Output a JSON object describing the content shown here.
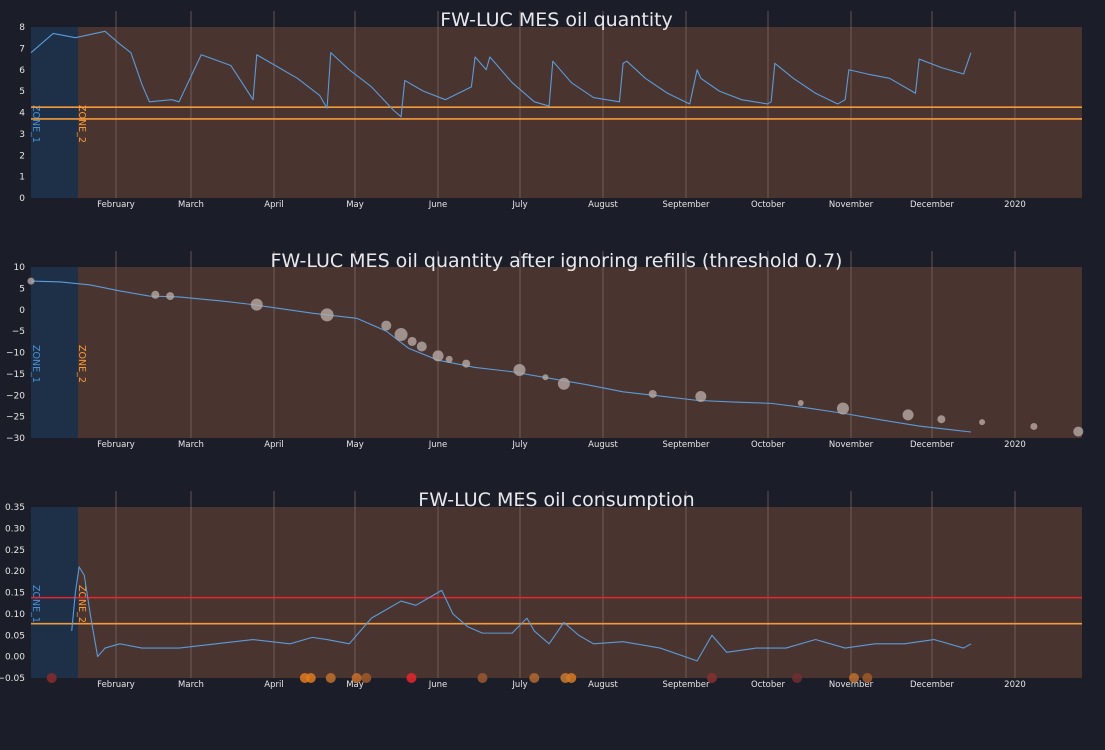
{
  "colors": {
    "background": "#1b1d29",
    "plot_bg": "#4a3430",
    "zone1_bg": "#1e3047",
    "grid": "#8a7470",
    "line": "#5b9bd8",
    "orange": "#f39a3a",
    "red": "#e5262c",
    "marker": "#b5a9a5"
  },
  "months": [
    "February",
    "March",
    "April",
    "May",
    "June",
    "July",
    "August",
    "September",
    "October",
    "November",
    "December",
    "2020"
  ],
  "zones": {
    "zone1": "ZONE_1",
    "zone2": "ZONE_2"
  },
  "chart_data": [
    {
      "type": "line",
      "title": "FW-LUC MES oil quantity",
      "ylim": [
        0,
        8
      ],
      "yticks": [
        "0",
        "1",
        "2",
        "3",
        "4",
        "5",
        "6",
        "7",
        "8"
      ],
      "thresholds": [
        {
          "value": 4.25,
          "color": "orange"
        },
        {
          "value": 3.7,
          "color": "orange"
        }
      ],
      "series": [
        {
          "x": [
            0,
            0.3,
            0.6,
            1.0,
            1.2,
            1.35,
            1.4,
            1.5,
            1.6,
            1.9,
            2.0,
            2.3,
            2.7,
            3.0,
            3.05,
            3.3,
            3.6,
            3.9,
            4.0,
            4.05,
            4.3,
            4.6,
            4.9,
            5.0,
            5.05,
            5.3,
            5.6,
            5.95,
            6.0,
            6.15,
            6.2,
            6.5,
            6.8,
            7.0,
            7.05,
            7.3,
            7.6,
            7.95,
            8.0,
            8.05,
            8.3,
            8.6,
            8.9,
            9.0,
            9.05,
            9.3,
            9.6,
            9.95,
            10.0,
            10.05,
            10.3,
            10.6,
            10.9,
            11.0,
            11.05,
            11.3,
            11.6,
            11.95,
            12.0,
            12.3,
            12.6,
            12.7
          ],
          "values": [
            6.8,
            7.7,
            7.5,
            7.8,
            7.2,
            6.8,
            6.3,
            5.3,
            4.5,
            4.6,
            4.5,
            6.7,
            6.2,
            4.6,
            6.7,
            6.2,
            5.6,
            4.8,
            4.2,
            6.8,
            6.0,
            5.2,
            4.1,
            3.8,
            5.5,
            5.0,
            4.6,
            5.2,
            6.6,
            6.0,
            6.6,
            5.4,
            4.5,
            4.3,
            6.4,
            5.4,
            4.7,
            4.5,
            6.3,
            6.4,
            5.6,
            4.9,
            4.4,
            6.0,
            5.6,
            5.0,
            4.6,
            4.4,
            4.5,
            6.3,
            5.6,
            4.9,
            4.4,
            4.6,
            6.0,
            5.8,
            5.6,
            4.9,
            6.5,
            6.1,
            5.8,
            6.8
          ]
        }
      ]
    },
    {
      "type": "line",
      "title": "FW-LUC MES oil quantity after ignoring refills (threshold 0.7)",
      "ylim": [
        -30,
        10
      ],
      "yticks": [
        "−30",
        "−25",
        "−20",
        "−15",
        "−10",
        "−5",
        "0",
        "5",
        "10"
      ],
      "series": [
        {
          "x": [
            0,
            0.4,
            0.8,
            1.2,
            1.6,
            2.0,
            2.6,
            3.0,
            3.8,
            4.4,
            4.8,
            5.1,
            5.5,
            6.0,
            6.5,
            7.0,
            7.5,
            8.0,
            8.5,
            9.0,
            9.5,
            10.0,
            10.5,
            11.0,
            11.5,
            12.0,
            12.5,
            12.7
          ],
          "values": [
            6.7,
            6.5,
            5.8,
            4.4,
            3.2,
            3.0,
            2.0,
            1.2,
            -0.8,
            -2.0,
            -5.0,
            -9.0,
            -11.8,
            -13.5,
            -14.5,
            -16.0,
            -17.5,
            -19.2,
            -20.2,
            -21.2,
            -21.6,
            -21.9,
            -23.0,
            -24.3,
            -25.8,
            -27.2,
            -28.2,
            -28.6
          ]
        }
      ],
      "markers": [
        {
          "x": 0,
          "y": 6.7,
          "r": 3.5
        },
        {
          "x": 1.68,
          "y": 3.5,
          "r": 4
        },
        {
          "x": 1.88,
          "y": 3.2,
          "r": 4
        },
        {
          "x": 3.05,
          "y": 1.2,
          "r": 6
        },
        {
          "x": 4.0,
          "y": -1.2,
          "r": 6.5
        },
        {
          "x": 4.8,
          "y": -3.7,
          "r": 5
        },
        {
          "x": 5.0,
          "y": -5.8,
          "r": 6.5
        },
        {
          "x": 5.15,
          "y": -7.4,
          "r": 4.5
        },
        {
          "x": 5.28,
          "y": -8.6,
          "r": 5
        },
        {
          "x": 5.5,
          "y": -10.8,
          "r": 5.5
        },
        {
          "x": 5.65,
          "y": -11.6,
          "r": 3.5
        },
        {
          "x": 5.88,
          "y": -12.6,
          "r": 4
        },
        {
          "x": 6.6,
          "y": -14.1,
          "r": 6
        },
        {
          "x": 6.95,
          "y": -15.8,
          "r": 3
        },
        {
          "x": 7.2,
          "y": -17.3,
          "r": 6
        },
        {
          "x": 8.4,
          "y": -19.7,
          "r": 4
        },
        {
          "x": 9.05,
          "y": -20.3,
          "r": 5.5
        },
        {
          "x": 10.4,
          "y": -21.8,
          "r": 3
        },
        {
          "x": 10.97,
          "y": -23.1,
          "r": 6
        },
        {
          "x": 11.85,
          "y": -24.6,
          "r": 5.5
        },
        {
          "x": 12.3,
          "y": -25.6,
          "r": 4
        },
        {
          "x": 12.85,
          "y": -26.3,
          "r": 3
        },
        {
          "x": 13.55,
          "y": -27.3,
          "r": 3.5
        },
        {
          "x": 14.15,
          "y": -28.5,
          "r": 5
        }
      ]
    },
    {
      "type": "line",
      "title": "FW-LUC MES oil consumption",
      "ylim": [
        -0.05,
        0.35
      ],
      "yticks": [
        "−0.05",
        "0.00",
        "0.05",
        "0.10",
        "0.15",
        "0.20",
        "0.25",
        "0.30",
        "0.35"
      ],
      "thresholds": [
        {
          "value": 0.138,
          "color": "red"
        },
        {
          "value": 0.077,
          "color": "orange"
        }
      ],
      "series": [
        {
          "x": [
            0.55,
            0.6,
            0.65,
            0.72,
            0.8,
            0.9,
            1.0,
            1.2,
            1.5,
            2.0,
            2.5,
            3.0,
            3.5,
            3.8,
            4.0,
            4.3,
            4.4,
            4.6,
            4.8,
            5.0,
            5.2,
            5.4,
            5.55,
            5.7,
            5.9,
            6.1,
            6.5,
            6.7,
            6.8,
            7.0,
            7.2,
            7.4,
            7.6,
            8.0,
            8.5,
            9.0,
            9.2,
            9.4,
            9.8,
            10.2,
            10.6,
            11.0,
            11.4,
            11.8,
            12.2,
            12.6,
            12.7
          ],
          "values": [
            0.06,
            0.15,
            0.21,
            0.19,
            0.1,
            0.0,
            0.02,
            0.03,
            0.02,
            0.02,
            0.03,
            0.04,
            0.03,
            0.045,
            0.04,
            0.03,
            0.05,
            0.09,
            0.11,
            0.13,
            0.12,
            0.14,
            0.155,
            0.1,
            0.07,
            0.055,
            0.055,
            0.09,
            0.06,
            0.03,
            0.08,
            0.05,
            0.03,
            0.035,
            0.02,
            -0.01,
            0.05,
            0.01,
            0.02,
            0.02,
            0.04,
            0.02,
            0.03,
            0.03,
            0.04,
            0.02,
            0.03
          ]
        }
      ],
      "markers": [
        {
          "x": 0.28,
          "color": "#8a2c2c"
        },
        {
          "x": 3.7,
          "color": "#e07a20"
        },
        {
          "x": 3.78,
          "color": "#e07a20"
        },
        {
          "x": 4.05,
          "color": "#c0702a"
        },
        {
          "x": 4.4,
          "color": "#c8702a"
        },
        {
          "x": 4.53,
          "color": "#a05a28"
        },
        {
          "x": 5.14,
          "color": "#e5262c"
        },
        {
          "x": 6.1,
          "color": "#9a5a30"
        },
        {
          "x": 6.8,
          "color": "#b06a30"
        },
        {
          "x": 7.22,
          "color": "#c87a30"
        },
        {
          "x": 7.3,
          "color": "#d57a25"
        },
        {
          "x": 9.2,
          "color": "#8a3030"
        },
        {
          "x": 10.35,
          "color": "#703030"
        },
        {
          "x": 11.12,
          "color": "#c07030"
        },
        {
          "x": 11.3,
          "color": "#a05a2a"
        }
      ]
    }
  ]
}
